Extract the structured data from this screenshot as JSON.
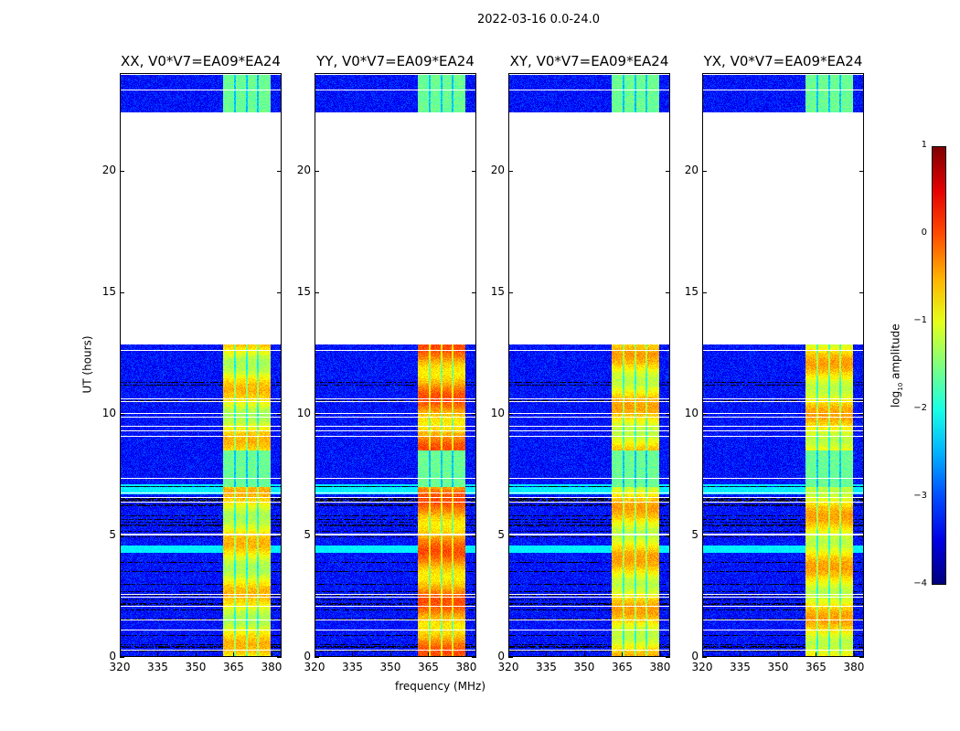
{
  "chart_data": {
    "type": "heatmap",
    "title": "2022-03-16 0.0-24.0",
    "xlabel": "frequency (MHz)",
    "ylabel": "UT (hours)",
    "xlim": [
      320,
      384
    ],
    "ylim": [
      0,
      24
    ],
    "xticks": [
      "320",
      "335",
      "350",
      "365",
      "380"
    ],
    "yticks": [
      "0",
      "5",
      "10",
      "15",
      "20"
    ],
    "panels": [
      {
        "title": "XX, V0*V7=EA09*EA24",
        "band_peak_log10": -0.4
      },
      {
        "title": "YY, V0*V7=EA09*EA24",
        "band_peak_log10": 0.1
      },
      {
        "title": "XY, V0*V7=EA09*EA24",
        "band_peak_log10": -0.3
      },
      {
        "title": "YX, V0*V7=EA09*EA24",
        "band_peak_log10": -0.3
      }
    ],
    "data_time_ranges_hours": [
      [
        0,
        12.9
      ],
      [
        22.4,
        24
      ]
    ],
    "signal_band_MHz": [
      360.5,
      379.5
    ],
    "background_log10": -3.3,
    "colorbar": {
      "label": "log10 amplitude",
      "label_main": "log",
      "label_sub": "10",
      "label_rest": " amplitude",
      "range": [
        -4,
        1
      ],
      "ticks": [
        "1",
        "0",
        "−1",
        "−2",
        "−3",
        "−4"
      ],
      "colormap": "jet"
    }
  }
}
